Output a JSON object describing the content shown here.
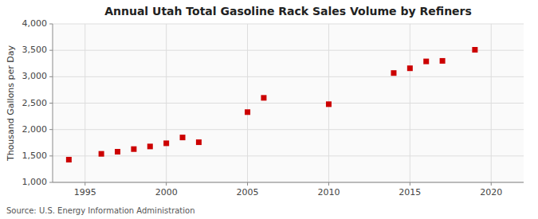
{
  "chart_data": {
    "type": "scatter",
    "title": "Annual Utah Total Gasoline Rack Sales Volume by Refiners",
    "ylabel": "Thousand Gallons per Day",
    "source": "Source: U.S. Energy Information Administration",
    "x": [
      1994,
      1996,
      1997,
      1998,
      1999,
      2000,
      2001,
      2002,
      2005,
      2006,
      2010,
      2014,
      2015,
      2016,
      2017,
      2019
    ],
    "values": [
      1430,
      1540,
      1580,
      1630,
      1680,
      1740,
      1850,
      1760,
      2330,
      2600,
      2480,
      3070,
      3160,
      3290,
      3300,
      3510
    ],
    "color": "#cc0000",
    "marker": "square",
    "xlim": [
      1993,
      2022
    ],
    "xticks": [
      1995,
      2000,
      2005,
      2010,
      2015,
      2020
    ],
    "ylim": [
      1000,
      4000
    ],
    "yticks": [
      {
        "value": 1000,
        "label": "1,000"
      },
      {
        "value": 1500,
        "label": "1,500"
      },
      {
        "value": 2000,
        "label": "2,000"
      },
      {
        "value": 2500,
        "label": "2,500"
      },
      {
        "value": 3000,
        "label": "3,000"
      },
      {
        "value": 3500,
        "label": "3,500"
      },
      {
        "value": 4000,
        "label": "4,000"
      }
    ],
    "grid": true
  }
}
